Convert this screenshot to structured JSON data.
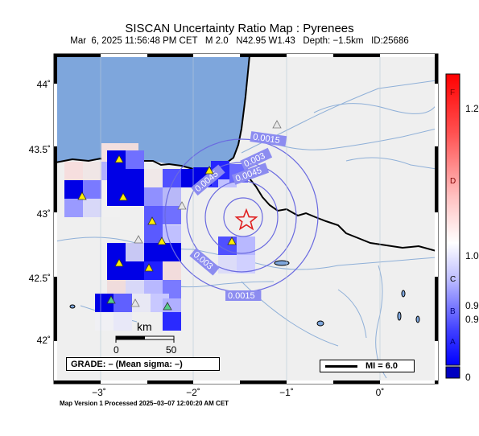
{
  "header": {
    "title": "SISCAN Uncertainty Ratio Map : Pyrenees",
    "subtitle": "Mar  6, 2025 11:56:48 PM CET   M 2.0   N42.95 W1.43   Depth: −1.5km   ID:25686"
  },
  "axes": {
    "lat_labels": [
      "44˚",
      "43.5˚",
      "43˚",
      "42.5˚",
      "42˚"
    ],
    "lon_labels": [
      "−3˚",
      "−2˚",
      "−1˚",
      "0˚"
    ]
  },
  "contours": {
    "labels": [
      "0.0015",
      "0.003",
      "0.0045",
      "0.0045",
      "0.003",
      "0.0015"
    ]
  },
  "scale_bar": {
    "unit": "km",
    "start": "0",
    "end": "50"
  },
  "grade": "GRADE: – (Mean sigma: –)",
  "mi_legend": "MI = 6.0",
  "colorbar": {
    "letters": [
      "F",
      "D",
      "C",
      "B",
      "A"
    ],
    "values": [
      "1.2",
      "1.0",
      "0.9",
      "0.9",
      "0"
    ]
  },
  "footer": "Map Version 1 Processed 2025–03–07 12:00:20 AM CET",
  "epicenter": {
    "lat": 42.95,
    "lon": -1.43
  },
  "colors": {
    "sea": "#7ea6dc",
    "land": "#efefef",
    "grid_blue_dark": "#0000e0",
    "station_yellow": "#ffee00",
    "station_green": "#55cc88",
    "epicenter": "#e02020"
  }
}
